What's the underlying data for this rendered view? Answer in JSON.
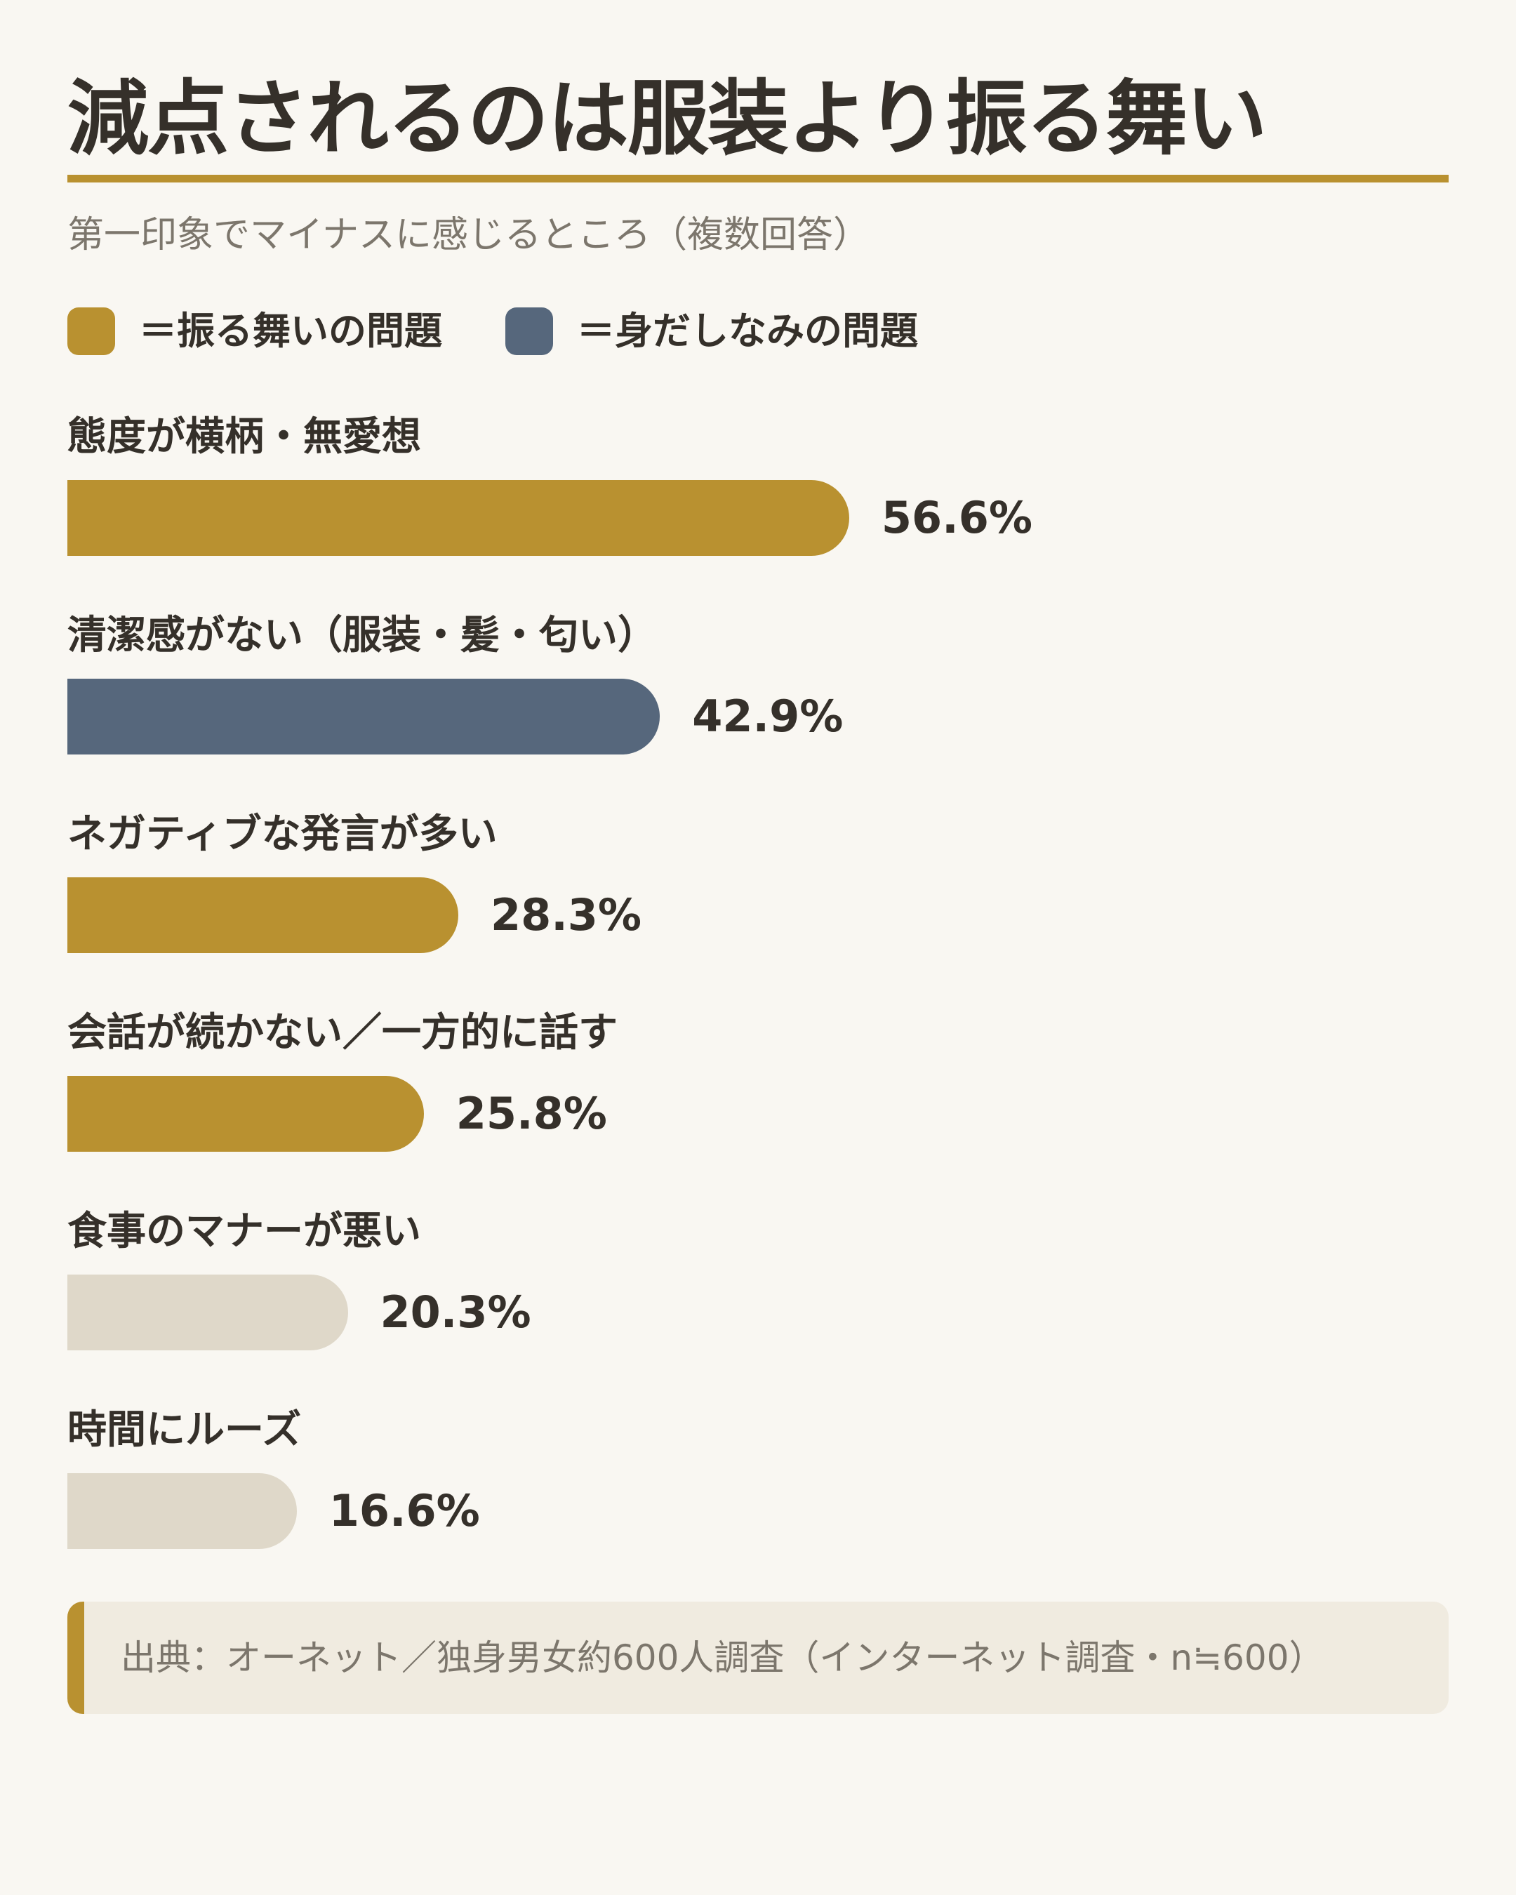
{
  "header": {
    "title": "減点されるのは服装より振る舞い",
    "subtitle": "第一印象でマイナスに感じるところ（複数回答）"
  },
  "legend": [
    {
      "label": "＝振る舞いの問題",
      "color": "#b99130"
    },
    {
      "label": "＝身だしなみの問題",
      "color": "#56677c"
    }
  ],
  "colors": {
    "behavior": "#b99130",
    "grooming": "#56677c",
    "other": "#dfd8c9",
    "accent": "#b99130",
    "background": "#f9f7f2"
  },
  "chart_data": {
    "type": "bar",
    "orientation": "horizontal",
    "title": "減点されるのは服装より振る舞い",
    "subtitle": "第一印象でマイナスに感じるところ（複数回答）",
    "unit": "%",
    "xlim": [
      0,
      100
    ],
    "grid": false,
    "legend_position": "top-left",
    "categories": [
      "態度が横柄・無愛想",
      "清潔感がない（服装・髪・匂い）",
      "ネガティブな発言が多い",
      "会話が続かない／一方的に話す",
      "食事のマナーが悪い",
      "時間にルーズ"
    ],
    "values": [
      56.6,
      42.9,
      28.3,
      25.8,
      20.3,
      16.6
    ],
    "value_labels": [
      "56.6%",
      "42.9%",
      "28.3%",
      "25.8%",
      "20.3%",
      "16.6%"
    ],
    "groups": [
      "behavior",
      "grooming",
      "behavior",
      "behavior",
      "other",
      "other"
    ]
  },
  "source": {
    "text": "出典：オーネット／独身男女約600人調査（インターネット調査・n≒600）"
  }
}
